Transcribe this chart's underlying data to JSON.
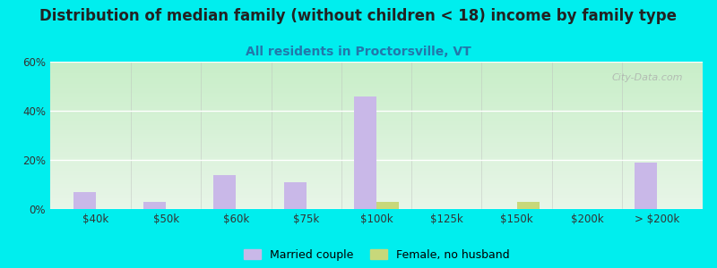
{
  "title": "Distribution of median family (without children < 18) income by family type",
  "subtitle": "All residents in Proctorsville, VT",
  "categories": [
    "$40k",
    "$50k",
    "$60k",
    "$75k",
    "$100k",
    "$125k",
    "$150k",
    "$200k",
    "> $200k"
  ],
  "married_couple": [
    7,
    3,
    14,
    11,
    46,
    0,
    0,
    0,
    19
  ],
  "female_no_husband": [
    0,
    0,
    0,
    0,
    3,
    0,
    3,
    0,
    0
  ],
  "bar_color_married": "#c9b8e8",
  "bar_color_female": "#c8d87a",
  "background_outer": "#00eeee",
  "ylim": [
    0,
    60
  ],
  "yticks": [
    0,
    20,
    40,
    60
  ],
  "ytick_labels": [
    "0%",
    "20%",
    "40%",
    "60%"
  ],
  "title_fontsize": 12,
  "subtitle_fontsize": 10,
  "watermark": "City-Data.com"
}
